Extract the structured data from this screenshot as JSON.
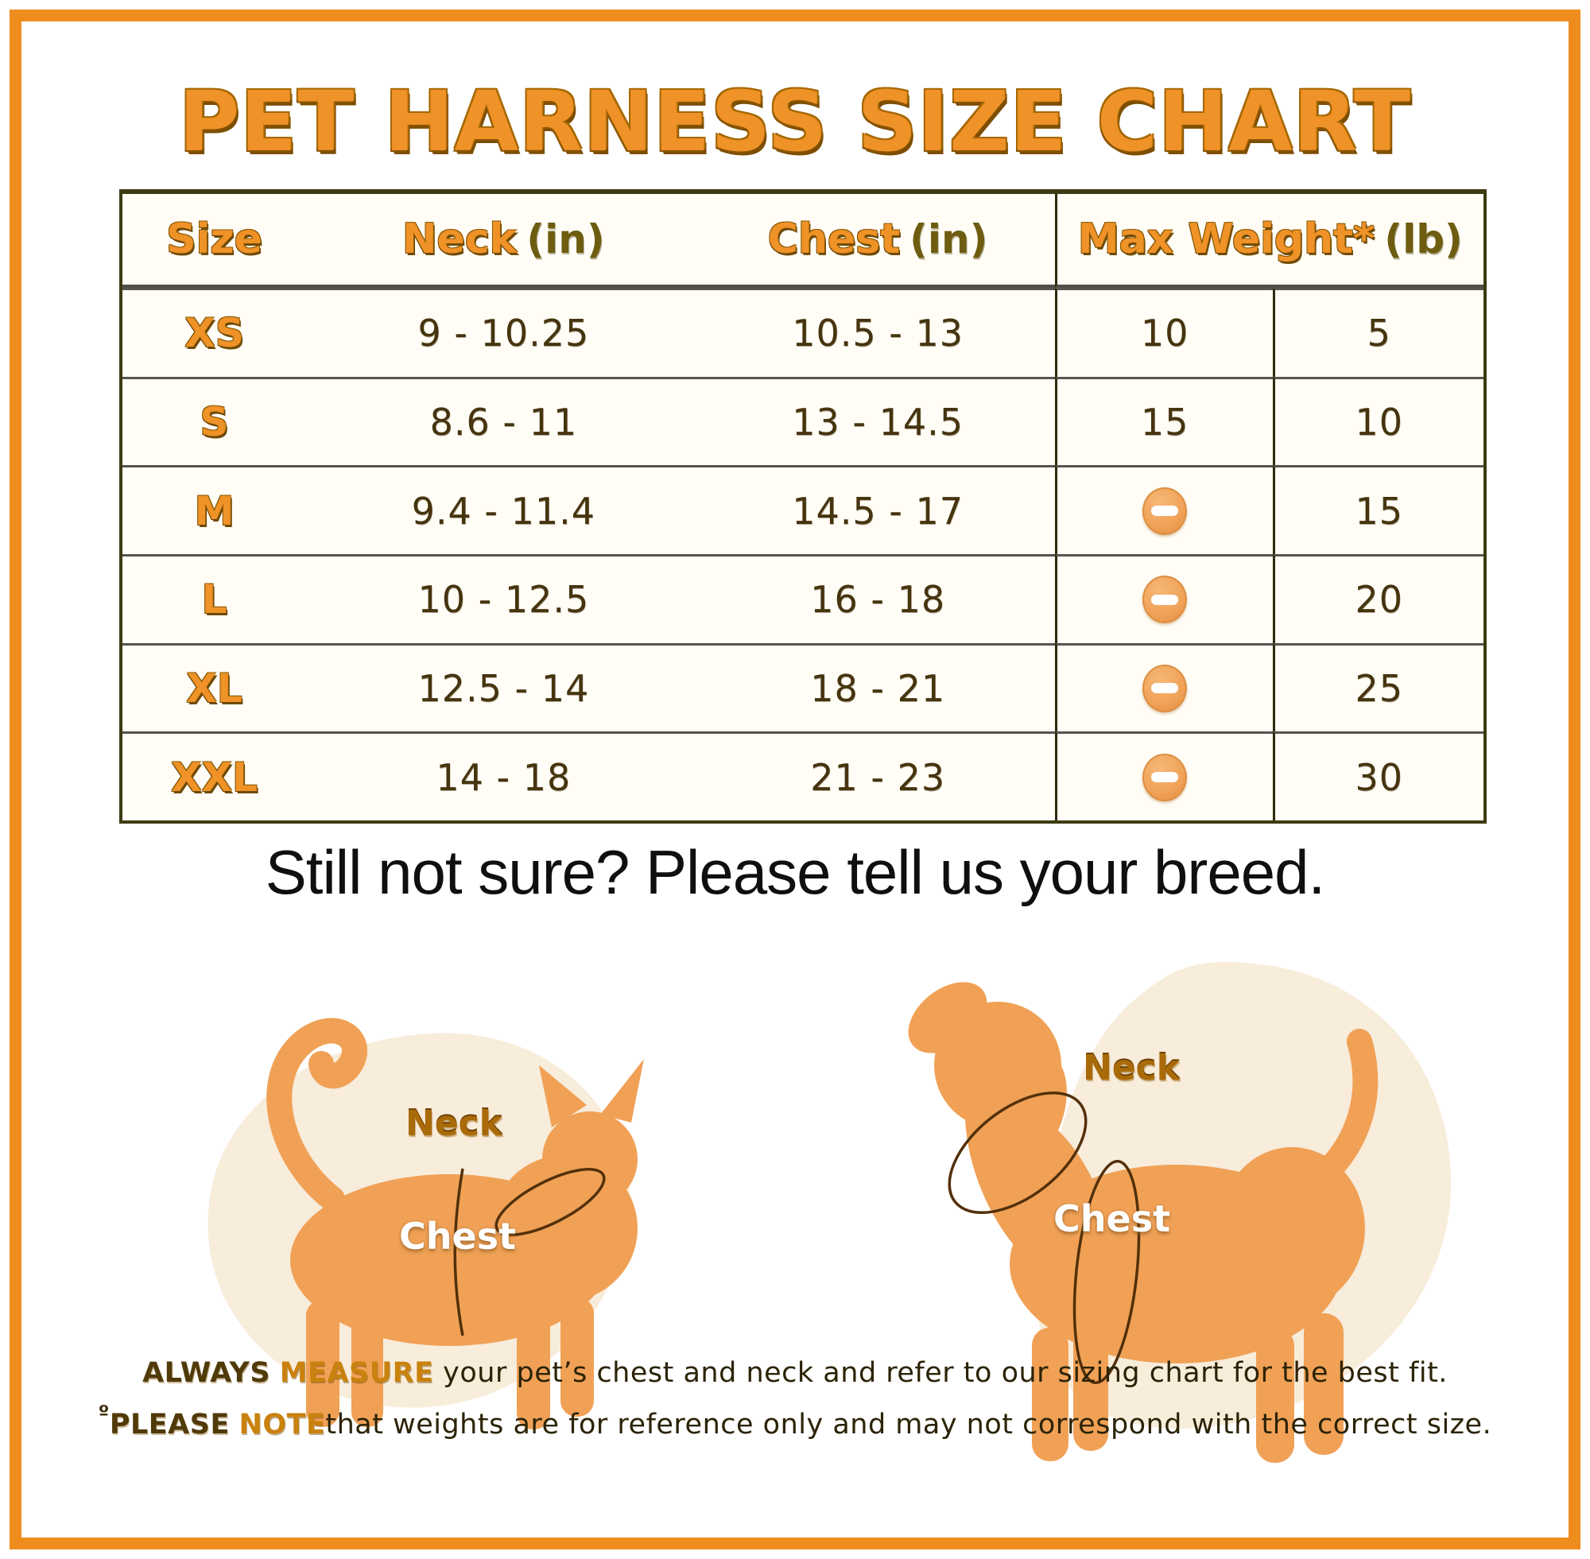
{
  "title": "PET HARNESS SIZE CHART",
  "subtitle": "Still not sure? Please tell us your breed.",
  "table": {
    "headers": [
      {
        "label": "Size",
        "unit": ""
      },
      {
        "label": "Neck",
        "unit": "(in)"
      },
      {
        "label": "Chest",
        "unit": "(in)"
      },
      {
        "label": "Max Weight*",
        "unit": "(lb)"
      }
    ],
    "rows": [
      {
        "size": "XS",
        "neck": "9 - 10.25",
        "chest": "10.5 - 13",
        "weight_a": "10",
        "weight_b": "5"
      },
      {
        "size": "S",
        "neck": "8.6 - 11",
        "chest": "13 - 14.5",
        "weight_a": "15",
        "weight_b": "10"
      },
      {
        "size": "M",
        "neck": "9.4 - 11.4",
        "chest": "14.5 - 17",
        "weight_a": "dash",
        "weight_b": "15"
      },
      {
        "size": "L",
        "neck": "10 - 12.5",
        "chest": "16 - 18",
        "weight_a": "dash",
        "weight_b": "20"
      },
      {
        "size": "XL",
        "neck": "12.5 - 14",
        "chest": "18 - 21",
        "weight_a": "dash",
        "weight_b": "25"
      },
      {
        "size": "XXL",
        "neck": "14 - 18",
        "chest": "21 - 23",
        "weight_a": "dash",
        "weight_b": "30"
      }
    ]
  },
  "chart_data": {
    "type": "table",
    "title": "PET HARNESS SIZE CHART",
    "columns": [
      "Size",
      "Neck (in)",
      "Chest (in)",
      "Max Weight* (lb)"
    ],
    "note": "Max Weight* (lb) column is split into two unlabeled sub-columns; 'dash' represents an orange minus icon",
    "rows": [
      [
        "XS",
        "9 - 10.25",
        "10.5 - 13",
        "10",
        "5"
      ],
      [
        "S",
        "8.6 - 11",
        "13 - 14.5",
        "15",
        "10"
      ],
      [
        "M",
        "9.4 - 11.4",
        "14.5 - 17",
        "dash",
        "15"
      ],
      [
        "L",
        "10 - 12.5",
        "16 - 18",
        "dash",
        "20"
      ],
      [
        "XL",
        "12.5 - 14",
        "18 - 21",
        "dash",
        "25"
      ],
      [
        "XXL",
        "14 - 18",
        "21 - 23",
        "dash",
        "30"
      ]
    ]
  },
  "figures": {
    "cat": {
      "neck_label": "Neck",
      "chest_label": "Chest"
    },
    "dog": {
      "neck_label": "Neck",
      "chest_label": "Chest"
    }
  },
  "footnotes": {
    "line1": {
      "bold_dark": "ALWAYS",
      "bold_orange": "MEASURE",
      "text": " your pet’s chest and neck and refer to our sizing chart for the best fit."
    },
    "line2": {
      "prefix": "º",
      "bold_dark": "PLEASE",
      "bold_orange": "NOTE",
      "text": "that weights are for reference only and may not correspond with the correct size."
    }
  },
  "colors": {
    "frame_orange": "#ee8c1d",
    "title_orange": "#ef9227",
    "header_unit_olive": "#6e5c10",
    "number_brown": "#45340e",
    "table_border": "#3e3a12",
    "row_line": "#56544c",
    "dash_icon_fill": "#f0a258",
    "silhouette_orange": "#f0a156",
    "blob_cream": "#f8ecdb",
    "table_background": "#fffdf6"
  }
}
